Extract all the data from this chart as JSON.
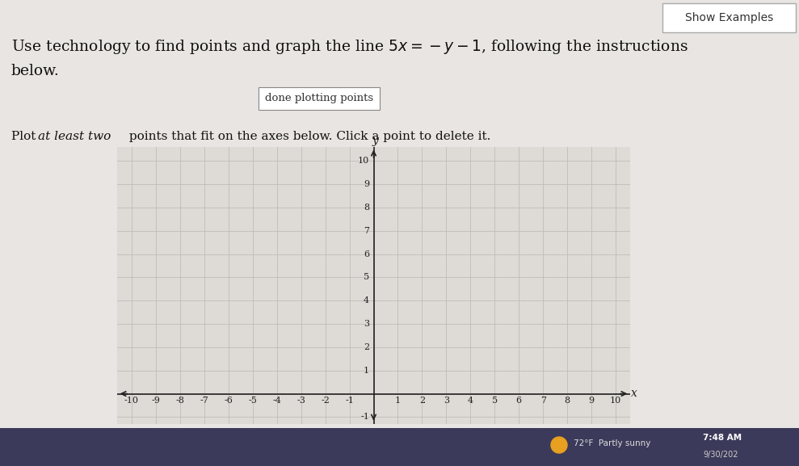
{
  "bg_color": "#e8e5e2",
  "graph_bg_color": "#dedad6",
  "grid_color": "#c0bbb6",
  "axis_color": "#222222",
  "show_examples_text": "Show Examples",
  "button_text": "done plotting points",
  "xmin": -10,
  "xmax": 10,
  "ymin": -1,
  "ymax": 10,
  "xlabel": "x",
  "ylabel": "y",
  "tick_fontsize": 8,
  "title_fontsize": 14,
  "taskbar_color": "#3c3a5a",
  "time_text": "7:48 AM",
  "weather_text": "72°F Partly sunny",
  "date_text": "9/30/202"
}
